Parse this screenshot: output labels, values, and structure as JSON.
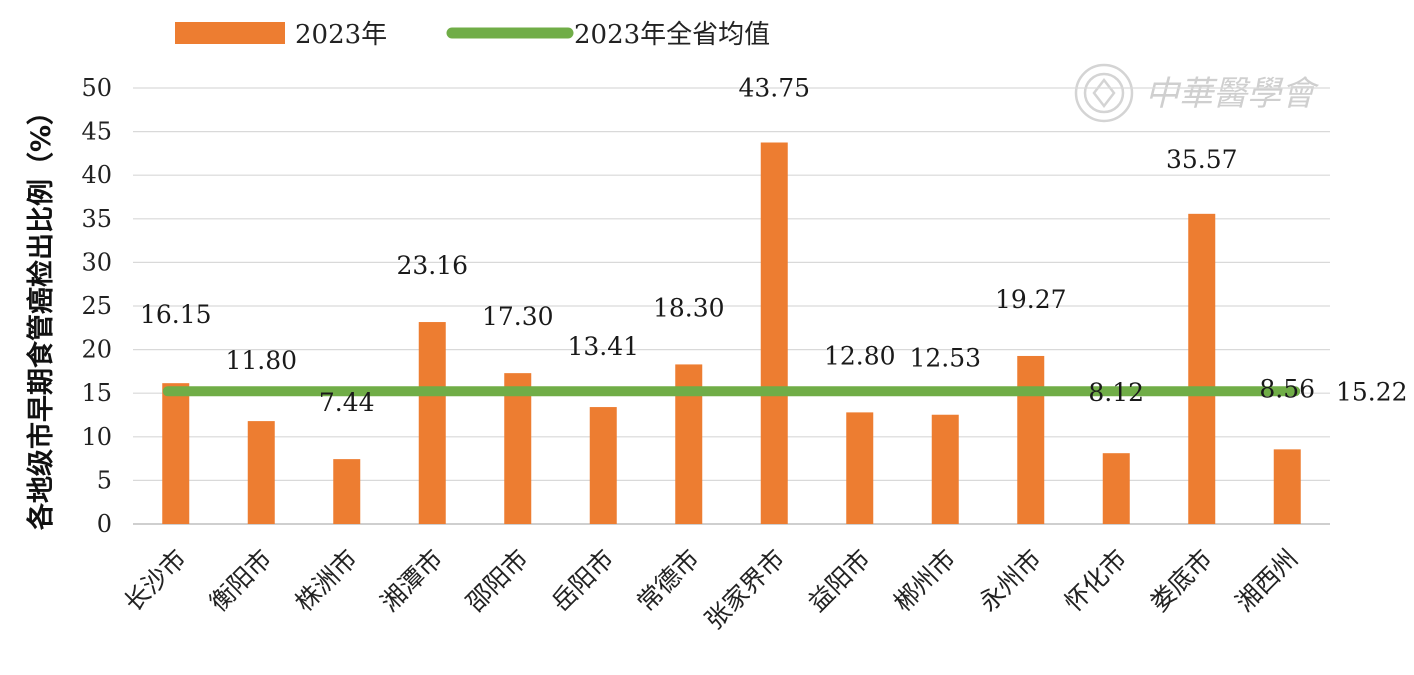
{
  "chart_data": {
    "type": "bar",
    "title": "",
    "xlabel": "",
    "ylabel": "各地级市早期食管癌检出比例（%）",
    "ylim": [
      0,
      50
    ],
    "yticks": [
      0,
      5,
      10,
      15,
      20,
      25,
      30,
      35,
      40,
      45,
      50
    ],
    "grid": true,
    "legend_position": "top",
    "categories": [
      "长沙市",
      "衡阳市",
      "株洲市",
      "湘潭市",
      "邵阳市",
      "岳阳市",
      "常德市",
      "张家界市",
      "益阳市",
      "郴州市",
      "永州市",
      "怀化市",
      "娄底市",
      "湘西州"
    ],
    "series": [
      {
        "name": "2023年",
        "type": "bar",
        "color": "#ED7D31",
        "values": [
          16.15,
          11.8,
          7.44,
          23.16,
          17.3,
          13.41,
          18.3,
          43.75,
          12.8,
          12.53,
          19.27,
          8.12,
          35.57,
          8.56
        ],
        "labels": [
          "16.15",
          "11.80",
          "7.44",
          "23.16",
          "17.30",
          "13.41",
          "18.30",
          "43.75",
          "12.80",
          "12.53",
          "19.27",
          "8.12",
          "35.57",
          "8.56"
        ]
      },
      {
        "name": "2023年全省均值",
        "type": "line",
        "color": "#70AD47",
        "value": 15.22,
        "label": "15.22"
      }
    ]
  },
  "watermark": {
    "text": "中華醫學會",
    "icon": "society-seal-icon"
  }
}
